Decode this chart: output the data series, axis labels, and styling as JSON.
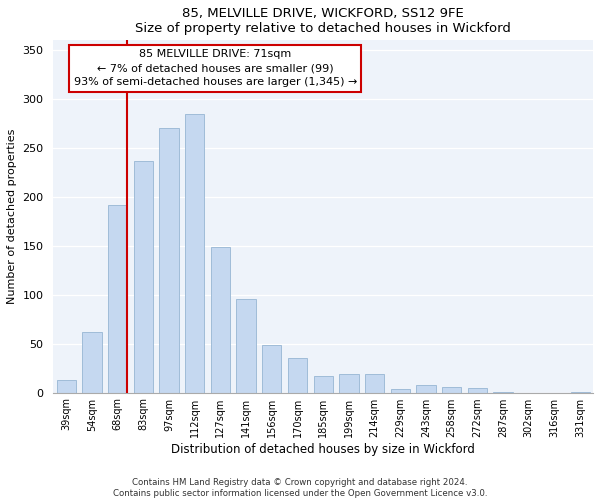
{
  "title": "85, MELVILLE DRIVE, WICKFORD, SS12 9FE",
  "subtitle": "Size of property relative to detached houses in Wickford",
  "xlabel": "Distribution of detached houses by size in Wickford",
  "ylabel": "Number of detached properties",
  "categories": [
    "39sqm",
    "54sqm",
    "68sqm",
    "83sqm",
    "97sqm",
    "112sqm",
    "127sqm",
    "141sqm",
    "156sqm",
    "170sqm",
    "185sqm",
    "199sqm",
    "214sqm",
    "229sqm",
    "243sqm",
    "258sqm",
    "272sqm",
    "287sqm",
    "302sqm",
    "316sqm",
    "331sqm"
  ],
  "values": [
    13,
    62,
    192,
    237,
    270,
    285,
    149,
    96,
    49,
    35,
    17,
    19,
    19,
    4,
    8,
    6,
    5,
    1,
    0,
    0,
    1
  ],
  "bar_color": "#c5d8f0",
  "bar_edge_color": "#a0bcd8",
  "vline_x_index": 2,
  "vline_color": "#cc0000",
  "annotation_text": "85 MELVILLE DRIVE: 71sqm\n← 7% of detached houses are smaller (99)\n93% of semi-detached houses are larger (1,345) →",
  "annotation_box_color": "#ffffff",
  "annotation_box_edge_color": "#cc0000",
  "ylim": [
    0,
    360
  ],
  "yticks": [
    0,
    50,
    100,
    150,
    200,
    250,
    300,
    350
  ],
  "footer_line1": "Contains HM Land Registry data © Crown copyright and database right 2024.",
  "footer_line2": "Contains public sector information licensed under the Open Government Licence v3.0.",
  "background_color": "#eef3fa"
}
